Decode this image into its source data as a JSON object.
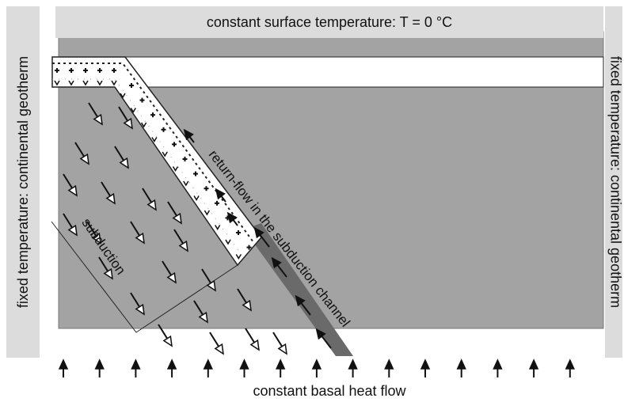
{
  "top_label": "constant surface temperature: T = 0 °C",
  "left_label": "fixed temperature: continental geotherm",
  "right_label": "fixed temperature: continental geotherm",
  "bottom_label": "constant basal heat flow",
  "channel_label": "return-flow in the subduction channel",
  "subduction_label": "subduction"
}
